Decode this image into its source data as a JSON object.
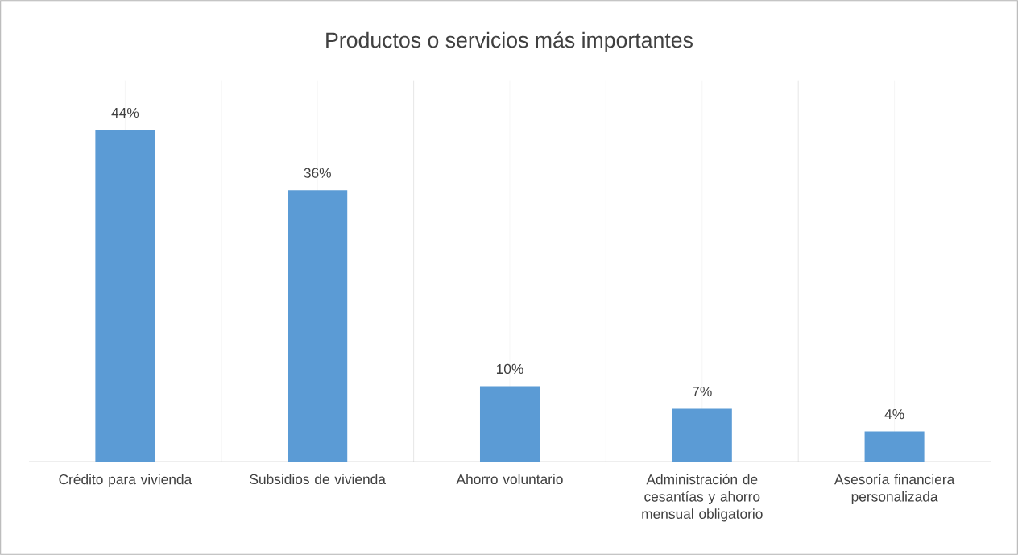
{
  "chart_data": {
    "type": "bar",
    "title": "Productos o servicios más importantes",
    "categories": [
      "Crédito para vivienda",
      "Subsidios de vivienda",
      "Ahorro voluntario",
      "Administración de cesantías y ahorro mensual obligatorio",
      "Asesoría financiera personalizada"
    ],
    "values": [
      44,
      36,
      10,
      7,
      4
    ],
    "value_labels": [
      "44%",
      "36%",
      "10%",
      "7%",
      "4%"
    ],
    "color": "#5b9bd5",
    "grid": "x"
  }
}
